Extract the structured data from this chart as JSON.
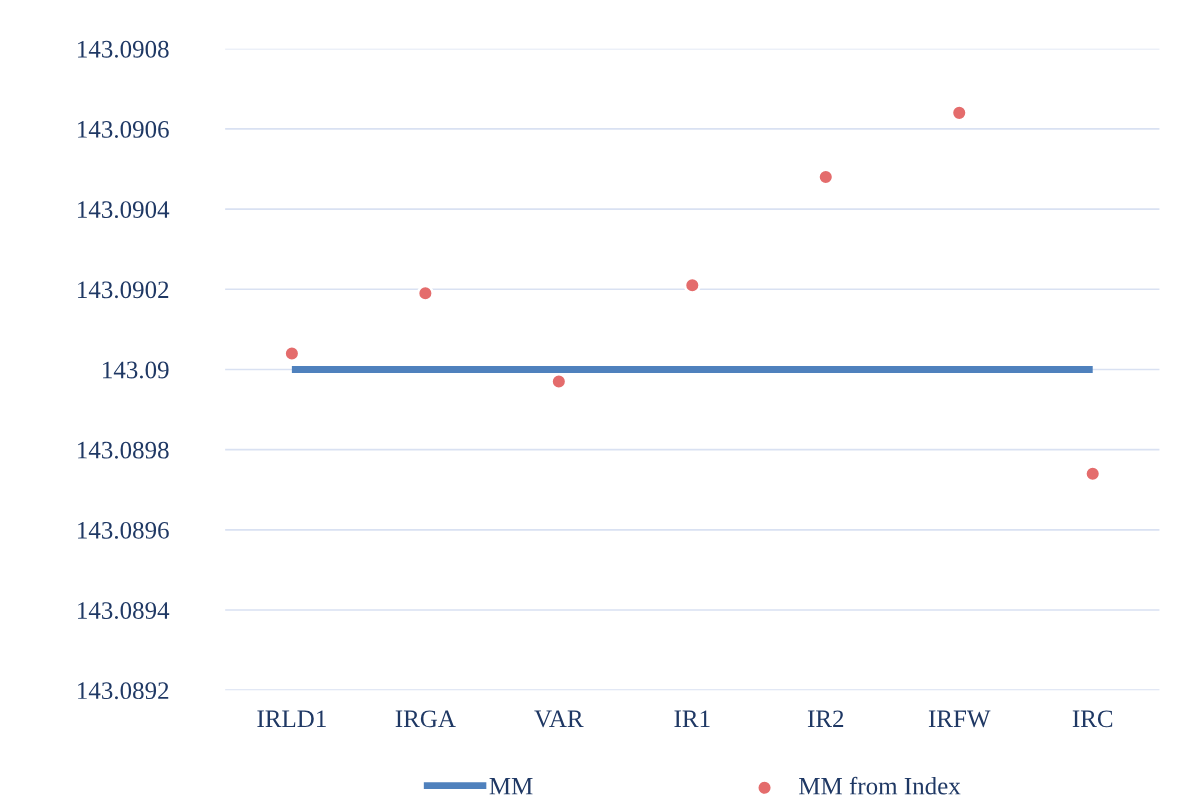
{
  "chart_data": {
    "type": "line",
    "categories": [
      "IRLD1",
      "IRGA",
      "VAR",
      "IR1",
      "IR2",
      "IRFW",
      "IRC"
    ],
    "series": [
      {
        "name": "MM",
        "color": "#4f81bd",
        "marker": "none",
        "values": [
          143.09,
          143.09,
          143.09,
          143.09,
          143.09,
          143.09,
          143.09
        ]
      },
      {
        "name": "MM from Index",
        "type": "scatter",
        "color": "#e46c6c",
        "marker": "circle",
        "values": [
          143.09004,
          143.09019,
          143.08997,
          143.09021,
          143.09048,
          143.09064,
          143.08974
        ]
      }
    ],
    "ylim": [
      143.0892,
      143.0908
    ],
    "yticks": [
      143.0892,
      143.0894,
      143.0896,
      143.0898,
      143.09,
      143.0902,
      143.0904,
      143.0906,
      143.0908
    ],
    "grid": "y",
    "legend": "bottom"
  }
}
